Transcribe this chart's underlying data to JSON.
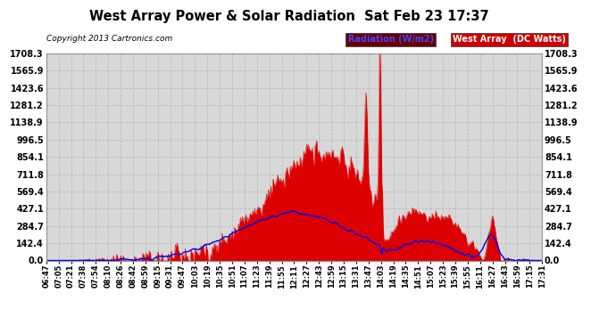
{
  "title": "West Array Power & Solar Radiation  Sat Feb 23 17:37",
  "copyright": "Copyright 2013 Cartronics.com",
  "legend_radiation": "Radiation (W/m2)",
  "legend_west": "West Array  (DC Watts)",
  "yticks": [
    0.0,
    142.4,
    284.7,
    427.1,
    569.4,
    711.8,
    854.1,
    996.5,
    1138.9,
    1281.2,
    1423.6,
    1565.9,
    1708.3
  ],
  "ymax": 1708.3,
  "background_color": "#ffffff",
  "plot_bg_color": "#d8d8d8",
  "grid_color": "#bbbbbb",
  "red_fill_color": "#dd0000",
  "blue_line_color": "#0000ee",
  "xtick_labels": [
    "06:47",
    "07:05",
    "07:21",
    "07:38",
    "07:54",
    "08:10",
    "08:26",
    "08:42",
    "08:59",
    "09:15",
    "09:31",
    "09:47",
    "10:03",
    "10:19",
    "10:35",
    "10:51",
    "11:07",
    "11:23",
    "11:39",
    "11:55",
    "12:11",
    "12:27",
    "12:43",
    "12:59",
    "13:15",
    "13:31",
    "13:47",
    "14:03",
    "14:19",
    "14:35",
    "14:51",
    "15:07",
    "15:23",
    "15:39",
    "15:55",
    "16:11",
    "16:27",
    "16:43",
    "16:59",
    "17:15",
    "17:31"
  ],
  "n_points": 800
}
